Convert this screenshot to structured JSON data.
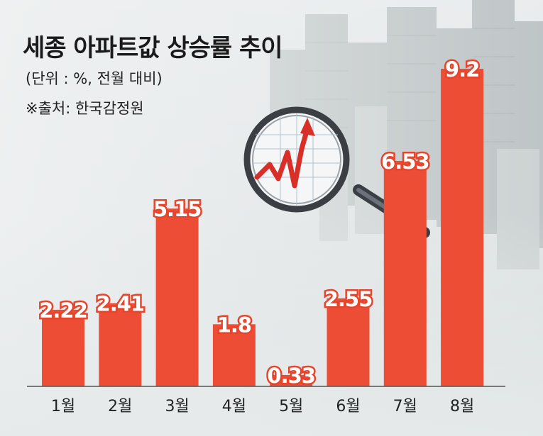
{
  "header": {
    "title": "세종 아파트값 상승률 추이",
    "unit_note": "(단위 : %, 전월 대비)",
    "source": "※출처: 한국감정원"
  },
  "colors": {
    "bar": "#ee4d35",
    "bar_label_outline": "#e8432b",
    "axis": "#555555"
  },
  "decoration": {
    "icon": "magnifying-glass-rising-chart-icon"
  },
  "chart_data": {
    "type": "bar",
    "categories": [
      "1월",
      "2월",
      "3월",
      "4월",
      "5월",
      "6월",
      "7월",
      "8월"
    ],
    "values": [
      2.22,
      2.41,
      5.15,
      1.8,
      0.33,
      2.55,
      6.53,
      9.2
    ],
    "value_labels": [
      "2.22",
      "2.41",
      "5.15",
      "1.8",
      "0.33",
      "2.55",
      "6.53",
      "9.2"
    ],
    "title": "세종 아파트값 상승률 추이",
    "ylim": [
      0,
      9.2
    ],
    "grid": false,
    "legend": "none"
  }
}
